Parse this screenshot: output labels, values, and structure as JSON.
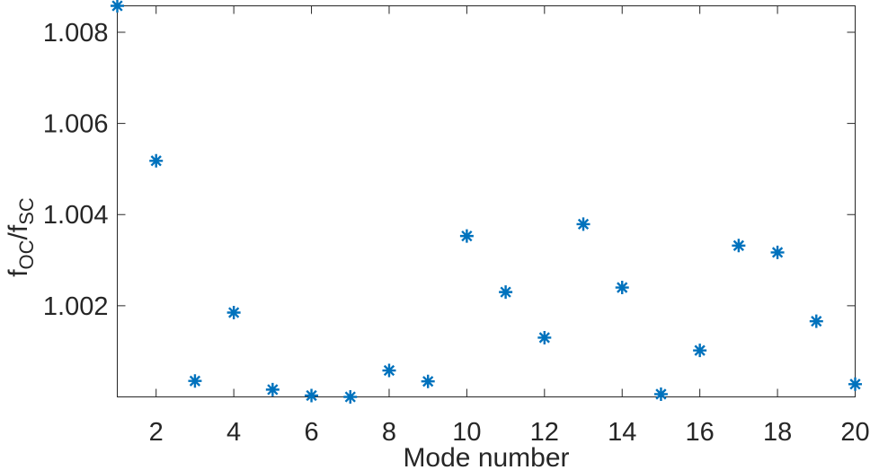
{
  "figure": {
    "background": "#ffffff",
    "axis_color": "#262626",
    "text_color": "#262626"
  },
  "chart_data": {
    "type": "scatter",
    "title": "",
    "xlabel": "Mode number",
    "ylabel": "f_OC/f_SC",
    "ylabel_parts": [
      {
        "text": "f",
        "sub": false
      },
      {
        "text": "OC",
        "sub": true
      },
      {
        "text": "/f",
        "sub": false
      },
      {
        "text": "SC",
        "sub": true
      }
    ],
    "x": [
      1,
      2,
      3,
      4,
      5,
      6,
      7,
      8,
      9,
      10,
      11,
      12,
      13,
      14,
      15,
      16,
      17,
      18,
      19,
      20
    ],
    "y": [
      1.00858,
      1.00518,
      1.00035,
      1.00185,
      1.00016,
      1.00003,
      1.0,
      1.00058,
      1.00034,
      1.00353,
      1.0023,
      1.0013,
      1.00379,
      1.0024,
      1.00006,
      1.00102,
      1.00332,
      1.00317,
      1.00166,
      1.00028
    ],
    "xlim": [
      1,
      20
    ],
    "ylim": [
      1.0,
      1.00858
    ],
    "xticks": [
      2,
      4,
      6,
      8,
      10,
      12,
      14,
      16,
      18,
      20
    ],
    "xtick_labels": [
      "2",
      "4",
      "6",
      "8",
      "10",
      "12",
      "14",
      "16",
      "18",
      "20"
    ],
    "yticks": [
      1.002,
      1.004,
      1.006,
      1.008
    ],
    "ytick_labels": [
      "1.002",
      "1.004",
      "1.006",
      "1.008"
    ],
    "grid": false,
    "box": true,
    "tick_direction": "in",
    "legend": null,
    "marker": "asterisk",
    "marker_color": "#0072BD"
  }
}
